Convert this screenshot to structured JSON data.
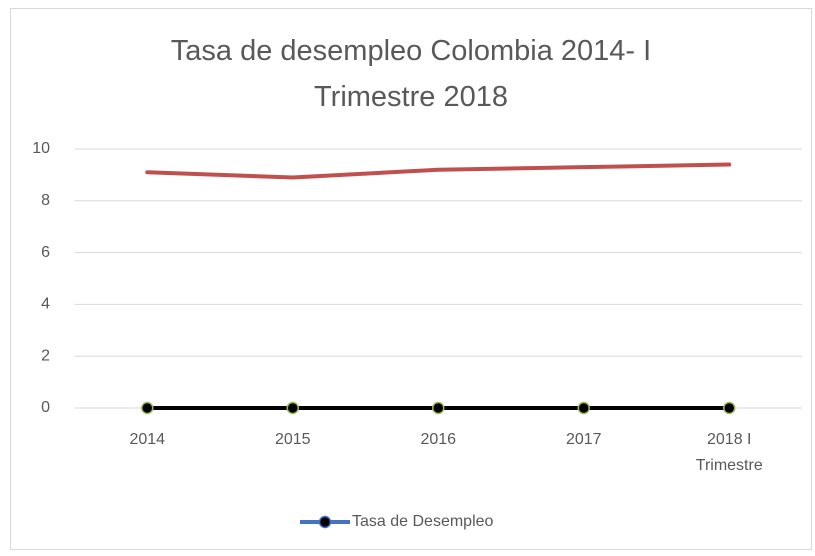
{
  "chart_data": {
    "type": "line",
    "title": "Tasa de desempleo Colombia 2014- I Trimestre 2018",
    "categories": [
      "2014",
      "2015",
      "2016",
      "2017",
      "2018 I Trimestre"
    ],
    "series": [
      {
        "color": "#c0504d",
        "values": [
          9.1,
          8.9,
          9.2,
          9.3,
          9.4
        ]
      },
      {
        "name": "Tasa de Desempleo",
        "color": "#000000",
        "marker_color": "#000000",
        "marker_edge": "#9bbb59",
        "legend_line_color": "#4472c4",
        "legend_marker_edge": "#4472c4",
        "values": [
          0,
          0,
          0,
          0,
          0
        ]
      }
    ],
    "ylim": [
      0,
      10
    ],
    "yticks": [
      0,
      2,
      4,
      6,
      8,
      10
    ],
    "grid": true,
    "legend": "bottom"
  }
}
